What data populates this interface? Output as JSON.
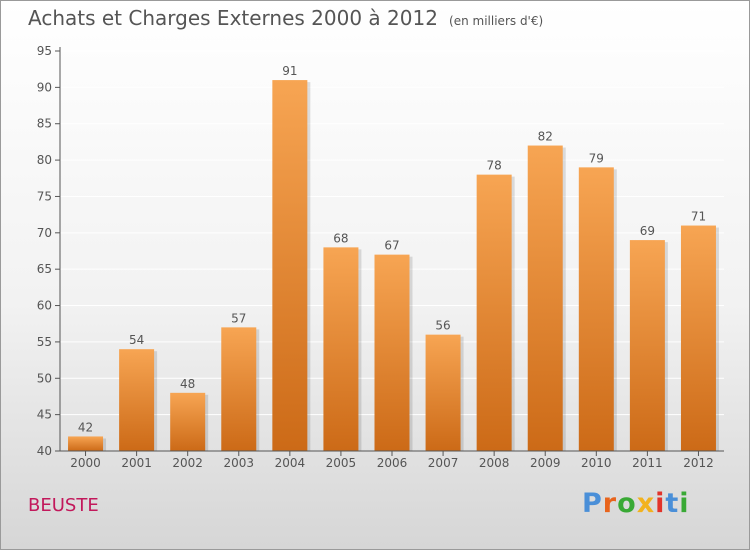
{
  "title": "Achats et Charges Externes 2000 à 2012",
  "unit": "(en milliers d'€)",
  "place": "BEUSTE",
  "logo": "Proxiti",
  "colors": {
    "bar_light": "#f7a553",
    "bar_dark": "#cc6a17",
    "axis": "#555555",
    "grid": "#ffffff",
    "place": "#c2185b",
    "logo": [
      "#4a8fd8",
      "#e8641c",
      "#39a935",
      "#f2b21e",
      "#e2332a",
      "#4a8fd8",
      "#39a935"
    ]
  },
  "chart_data": {
    "type": "bar",
    "title": "Achats et Charges Externes 2000 à 2012",
    "subtitle": "(en milliers d'€)",
    "categories": [
      "2000",
      "2001",
      "2002",
      "2003",
      "2004",
      "2005",
      "2006",
      "2007",
      "2008",
      "2009",
      "2010",
      "2011",
      "2012"
    ],
    "values": [
      42,
      54,
      48,
      57,
      91,
      68,
      67,
      56,
      78,
      82,
      79,
      69,
      71
    ],
    "ylim": [
      40,
      95
    ],
    "yticks": [
      40,
      45,
      50,
      55,
      60,
      65,
      70,
      75,
      80,
      85,
      90,
      95
    ],
    "grid": true,
    "xlabel": "",
    "ylabel": ""
  }
}
